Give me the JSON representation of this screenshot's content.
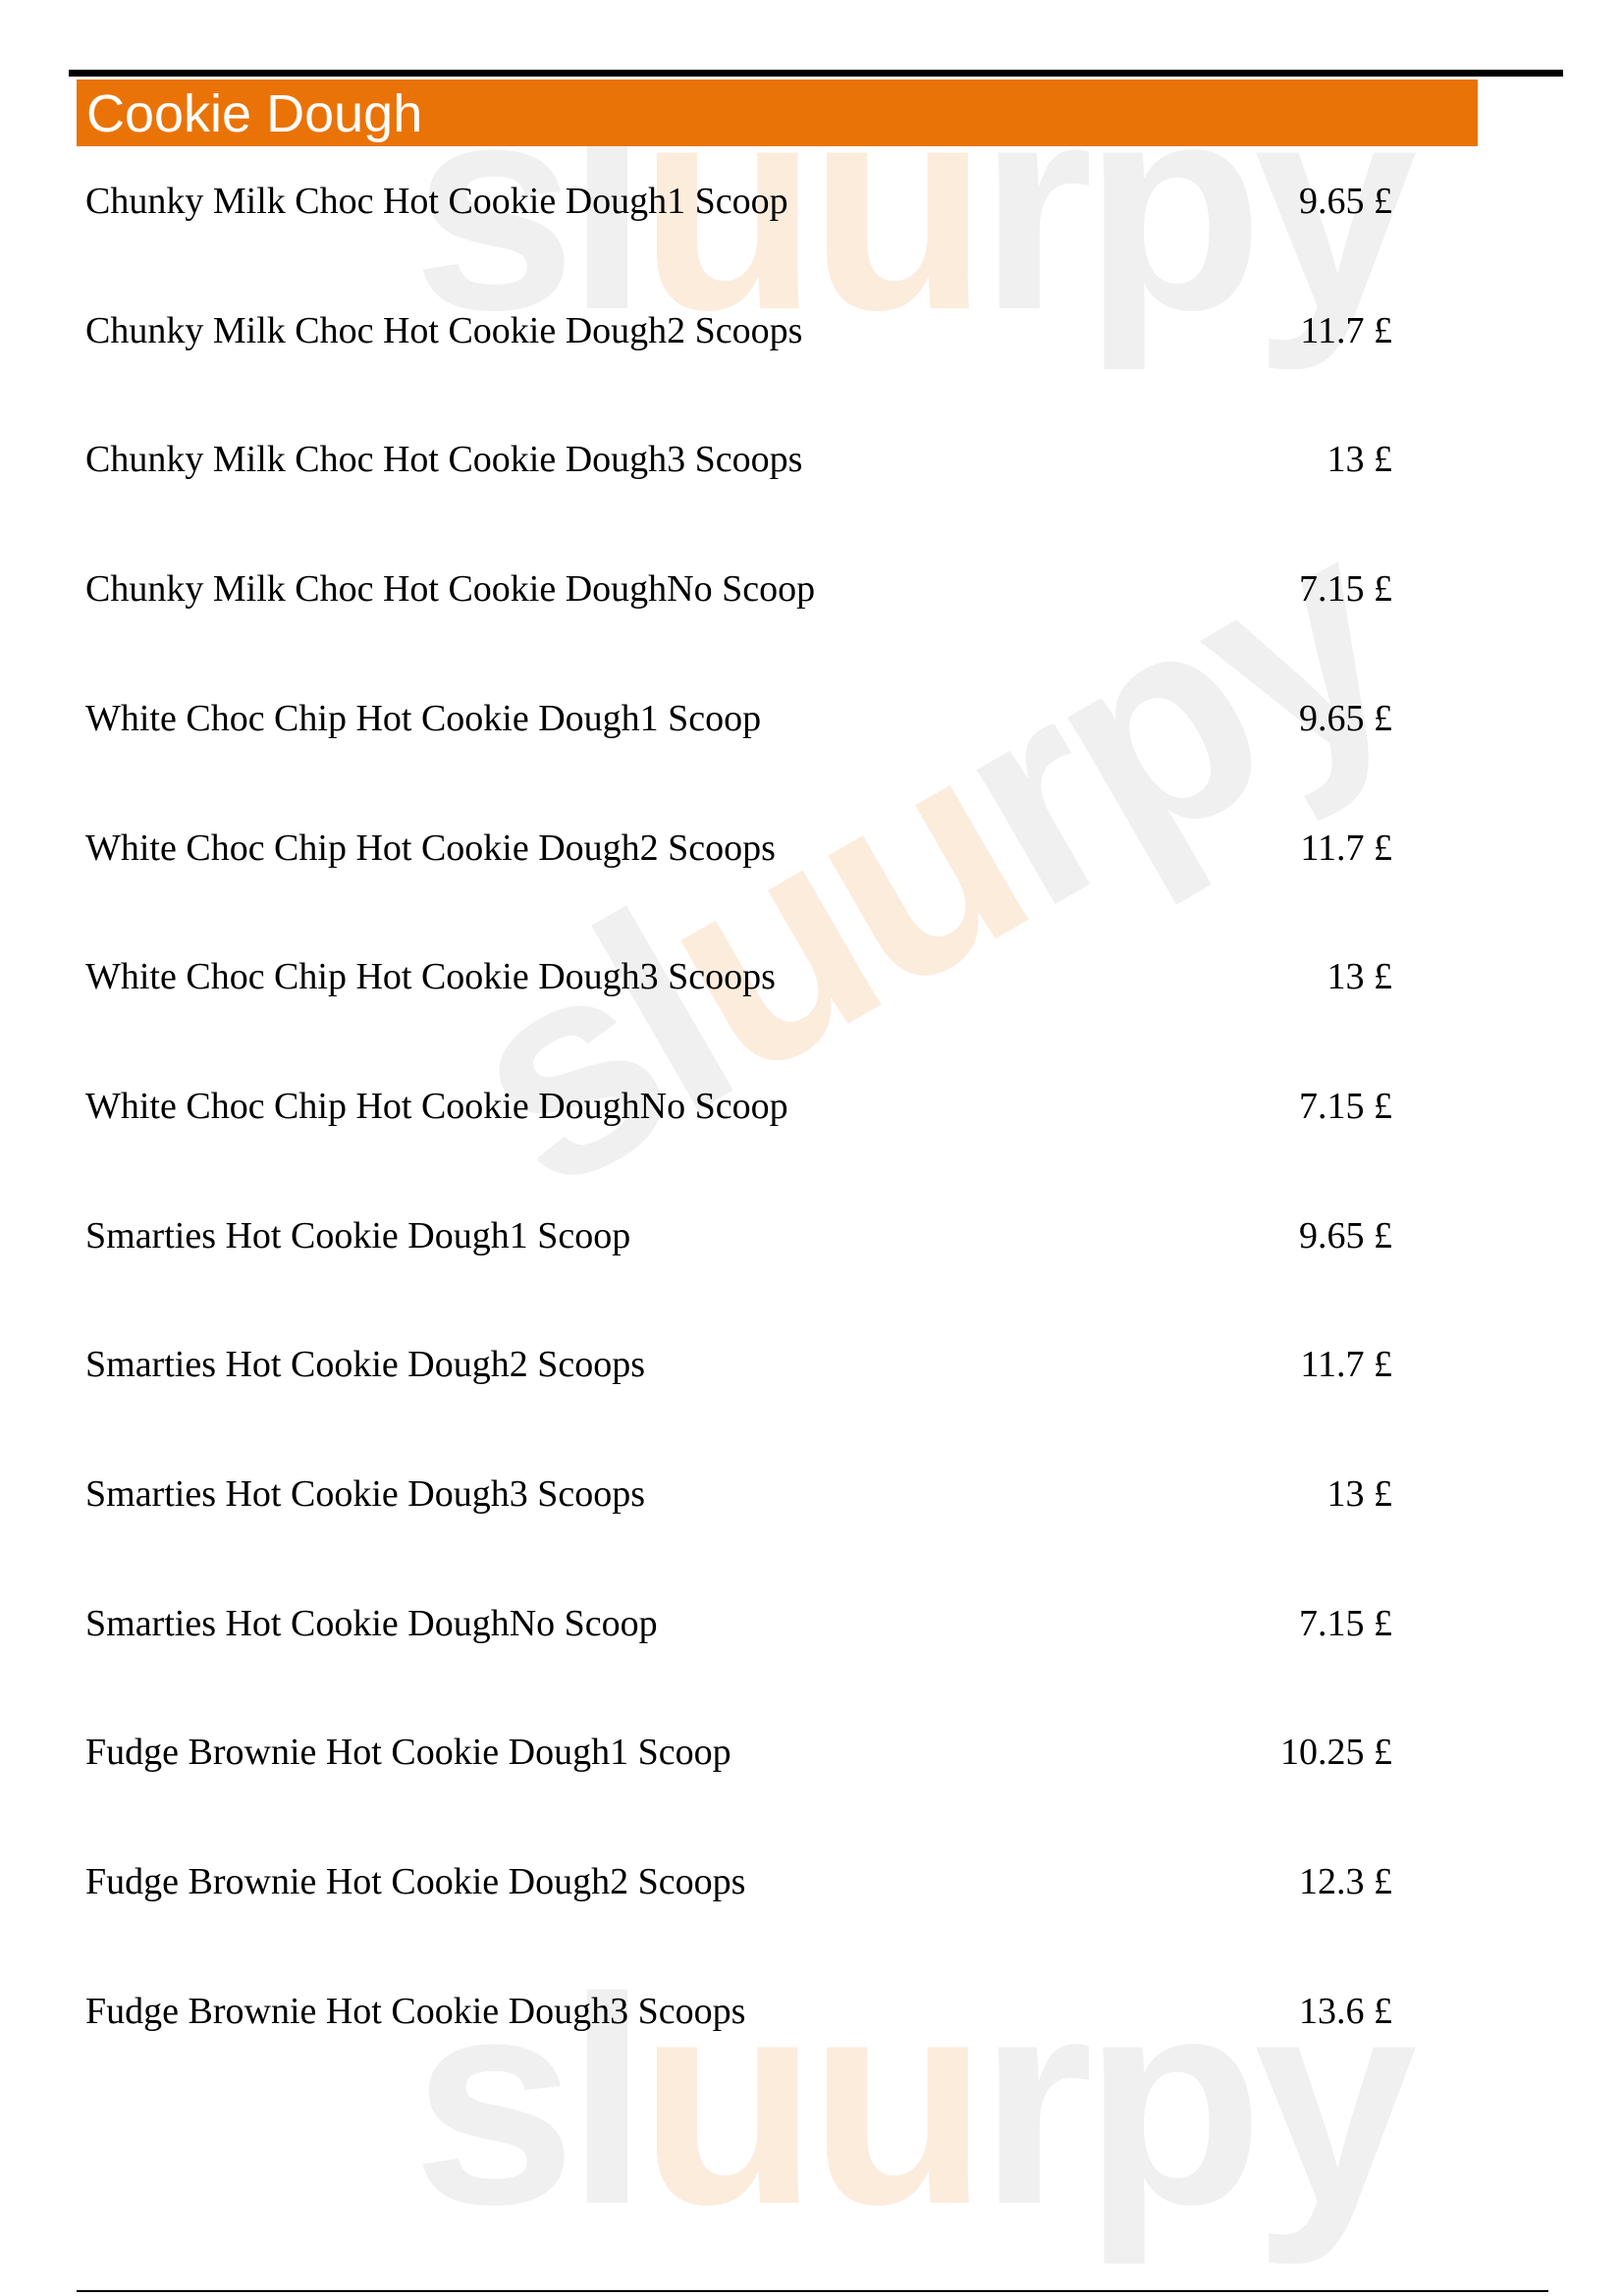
{
  "watermark": {
    "text_a": "sl",
    "text_u": "uu",
    "text_b": "rpy"
  },
  "section": {
    "title": "Cookie Dough"
  },
  "items": [
    {
      "name": "Chunky Milk Choc Hot Cookie Dough1 Scoop",
      "price": "9.65 £"
    },
    {
      "name": "Chunky Milk Choc Hot Cookie Dough2 Scoops",
      "price": "11.7 £"
    },
    {
      "name": "Chunky Milk Choc Hot Cookie Dough3 Scoops",
      "price": "13 £"
    },
    {
      "name": "Chunky Milk Choc Hot Cookie DoughNo Scoop",
      "price": "7.15 £"
    },
    {
      "name": "White Choc Chip Hot Cookie Dough1 Scoop",
      "price": "9.65 £"
    },
    {
      "name": "White Choc Chip Hot Cookie Dough2 Scoops",
      "price": "11.7 £"
    },
    {
      "name": "White Choc Chip Hot Cookie Dough3 Scoops",
      "price": "13 £"
    },
    {
      "name": "White Choc Chip Hot Cookie DoughNo Scoop",
      "price": "7.15 £"
    },
    {
      "name": "Smarties Hot Cookie Dough1 Scoop",
      "price": "9.65 £"
    },
    {
      "name": "Smarties Hot Cookie Dough2 Scoops",
      "price": "11.7 £"
    },
    {
      "name": "Smarties Hot Cookie Dough3 Scoops",
      "price": "13 £"
    },
    {
      "name": "Smarties Hot Cookie DoughNo Scoop",
      "price": "7.15 £"
    },
    {
      "name": "Fudge Brownie Hot Cookie Dough1 Scoop",
      "price": "10.25 £"
    },
    {
      "name": "Fudge Brownie Hot Cookie Dough2 Scoops",
      "price": "12.3 £"
    },
    {
      "name": "Fudge Brownie Hot Cookie Dough3 Scoops",
      "price": "13.6 £"
    }
  ],
  "colors": {
    "header_bg": "#ea7307",
    "header_text": "#ffffff"
  }
}
